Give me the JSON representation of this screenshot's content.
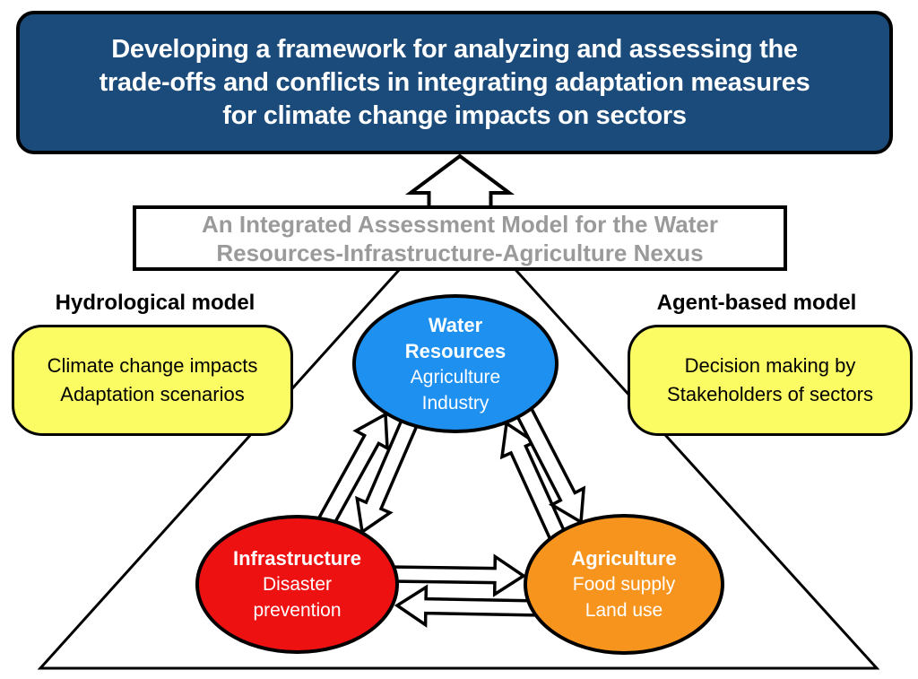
{
  "title": {
    "lines": [
      "Developing a framework for analyzing and assessing the",
      "trade-offs and conflicts in integrating adaptation measures",
      "for climate change impacts on sectors"
    ]
  },
  "model_box": {
    "lines": [
      "An Integrated Assessment Model for the Water",
      "Resources-Infrastructure-Agriculture Nexus"
    ]
  },
  "left_panel": {
    "heading": "Hydrological model",
    "lines": [
      "Climate change impacts",
      "Adaptation scenarios"
    ]
  },
  "right_panel": {
    "heading": "Agent-based model",
    "lines": [
      "Decision making by",
      "Stakeholders of sectors"
    ]
  },
  "nodes": {
    "water": {
      "lines": [
        "Water",
        "Resources",
        "Agriculture",
        "Industry"
      ],
      "color": "#1E90F0"
    },
    "infrastructure": {
      "lines": [
        "Infrastructure",
        "Disaster",
        "prevention"
      ],
      "color": "#EE1111"
    },
    "agriculture": {
      "lines": [
        "Agriculture",
        "Food supply",
        "Land use"
      ],
      "color": "#F7941E"
    }
  },
  "relations": [
    {
      "from": "water-resources",
      "to": "infrastructure",
      "type": "double-block-arrow"
    },
    {
      "from": "water-resources",
      "to": "agriculture",
      "type": "double-block-arrow"
    },
    {
      "from": "infrastructure",
      "to": "agriculture",
      "type": "double-block-arrow"
    },
    {
      "from": "integrated-assessment-model",
      "to": "framework-title",
      "type": "block-arrow-up"
    }
  ],
  "colors": {
    "title_bg": "#1B4B7A",
    "title_text": "#FFFFFF",
    "model_text": "#9A9A9A",
    "panel_yellow": "#FBFB64",
    "outline_black": "#000000"
  }
}
